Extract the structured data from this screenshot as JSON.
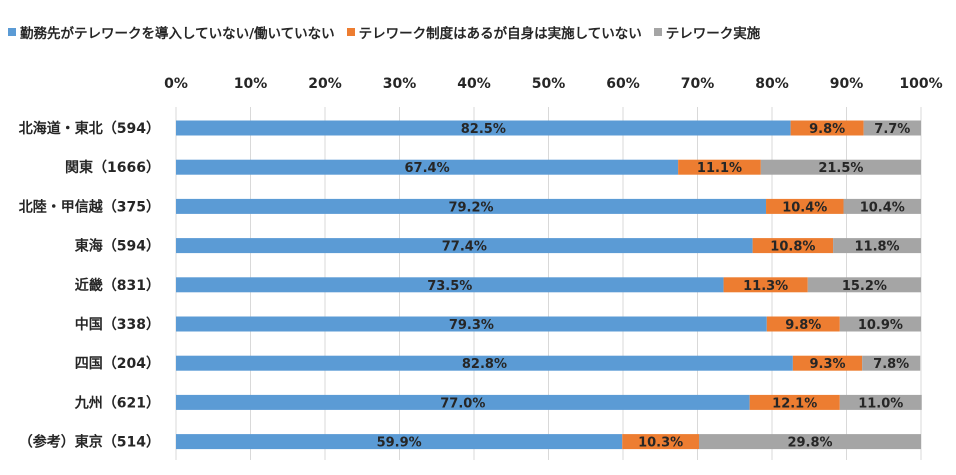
{
  "chart_data": {
    "type": "bar",
    "orientation": "horizontal",
    "stacked": true,
    "percent_stacked": true,
    "categories": [
      "北海道・東北（594）",
      "関東（1666）",
      "北陸・甲信越（375）",
      "東海（594）",
      "近畿（831）",
      "中国（338）",
      "四国（204）",
      "九州（621）",
      "（参考）東京（514）"
    ],
    "series": [
      {
        "name": "勤務先がテレワークを導入していない/働いていない",
        "color": "#5B9BD5",
        "values": [
          82.5,
          67.4,
          79.2,
          77.4,
          73.5,
          79.3,
          82.8,
          77.0,
          59.9
        ],
        "labels": [
          "82.5%",
          "67.4%",
          "79.2%",
          "77.4%",
          "73.5%",
          "79.3%",
          "82.8%",
          "77.0%",
          "59.9%"
        ]
      },
      {
        "name": "テレワーク制度はあるが自身は実施していない",
        "color": "#ED7D31",
        "values": [
          9.8,
          11.1,
          10.4,
          10.8,
          11.3,
          9.8,
          9.3,
          12.1,
          10.3
        ],
        "labels": [
          "9.8%",
          "11.1%",
          "10.4%",
          "10.8%",
          "11.3%",
          "9.8%",
          "9.3%",
          "12.1%",
          "10.3%"
        ]
      },
      {
        "name": "テレワーク実施",
        "color": "#A5A5A5",
        "values": [
          7.7,
          21.5,
          10.4,
          11.8,
          15.2,
          10.9,
          7.8,
          11.0,
          29.8
        ],
        "labels": [
          "7.7%",
          "21.5%",
          "10.4%",
          "11.8%",
          "15.2%",
          "10.9%",
          "7.8%",
          "11.0%",
          "29.8%"
        ]
      }
    ],
    "xlim": [
      0,
      100
    ],
    "xticks": [
      0,
      10,
      20,
      30,
      40,
      50,
      60,
      70,
      80,
      90,
      100
    ],
    "xtick_labels": [
      "0%",
      "10%",
      "20%",
      "30%",
      "40%",
      "50%",
      "60%",
      "70%",
      "80%",
      "90%",
      "100%"
    ],
    "x_axis_position": "top",
    "legend_position": "top",
    "grid": true,
    "gridline_color": "#D9D9D9"
  }
}
